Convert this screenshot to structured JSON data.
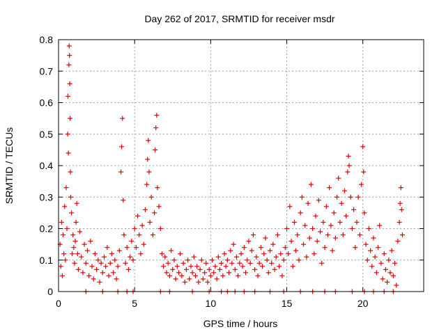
{
  "chart_data": {
    "type": "scatter",
    "title": "Day 262 of 2017, SRMTID for receiver msdr",
    "xlabel": "GPS time / hours",
    "ylabel": "SRMTID / TECUs",
    "xlim": [
      0,
      24
    ],
    "ylim": [
      0,
      0.8
    ],
    "xticks": [
      0,
      5,
      10,
      15,
      20
    ],
    "yticks": [
      0,
      0.1,
      0.2,
      0.3,
      0.4,
      0.5,
      0.6,
      0.7,
      0.8
    ],
    "xtick_labels": [
      "0",
      "5",
      "10",
      "15",
      "20"
    ],
    "ytick_labels": [
      "0",
      "0.1",
      "0.2",
      "0.3",
      "0.4",
      "0.5",
      "0.6",
      "0.7",
      "0.8"
    ],
    "marker": "+",
    "grid": true,
    "colors": {
      "series": "#e00000",
      "grid": "#a0a0a0",
      "axis": "#000000"
    },
    "series": [
      {
        "name": "SRMTID",
        "points": [
          [
            0.1,
            0.15
          ],
          [
            0.15,
            0.08
          ],
          [
            0.2,
            0.22
          ],
          [
            0.25,
            0.05
          ],
          [
            0.3,
            0.18
          ],
          [
            0.35,
            0.12
          ],
          [
            0.4,
            0.27
          ],
          [
            0.45,
            0.1
          ],
          [
            0.5,
            0.33
          ],
          [
            0.55,
            0.2
          ],
          [
            0.6,
            0.5
          ],
          [
            0.62,
            0.62
          ],
          [
            0.65,
            0.44
          ],
          [
            0.68,
            0.72
          ],
          [
            0.7,
            0.78
          ],
          [
            0.72,
            0.75
          ],
          [
            0.74,
            0.66
          ],
          [
            0.76,
            0.55
          ],
          [
            0.78,
            0.38
          ],
          [
            0.8,
            0.3
          ],
          [
            0.85,
            0.25
          ],
          [
            0.9,
            0.12
          ],
          [
            0.95,
            0.18
          ],
          [
            1.0,
            0.14
          ],
          [
            1.05,
            0.09
          ],
          [
            1.1,
            0.16
          ],
          [
            1.15,
            0.22
          ],
          [
            1.2,
            0.28
          ],
          [
            1.25,
            0.12
          ],
          [
            1.3,
            0.07
          ],
          [
            1.4,
            0.19
          ],
          [
            1.5,
            0.11
          ],
          [
            1.6,
            0.06
          ],
          [
            1.7,
            0.15
          ],
          [
            1.8,
            0.09
          ],
          [
            1.9,
            0.13
          ],
          [
            2.0,
            0.05
          ],
          [
            2.1,
            0.16
          ],
          [
            2.2,
            0.08
          ],
          [
            2.3,
            0.04
          ],
          [
            2.4,
            0.12
          ],
          [
            2.5,
            0.07
          ],
          [
            2.6,
            0.1
          ],
          [
            2.7,
            0.03
          ],
          [
            2.8,
            0.09
          ],
          [
            2.9,
            0.06
          ],
          [
            3.0,
            0.11
          ],
          [
            3.1,
            0.08
          ],
          [
            3.2,
            0.14
          ],
          [
            3.3,
            0.05
          ],
          [
            3.4,
            0.09
          ],
          [
            3.5,
            0.12
          ],
          [
            3.6,
            0.06
          ],
          [
            3.7,
            0.1
          ],
          [
            3.8,
            0.04
          ],
          [
            3.9,
            0.08
          ],
          [
            4.0,
            0.13
          ],
          [
            4.1,
            0.38
          ],
          [
            4.15,
            0.46
          ],
          [
            4.2,
            0.55
          ],
          [
            4.25,
            0.29
          ],
          [
            4.3,
            0.18
          ],
          [
            4.4,
            0.09
          ],
          [
            4.5,
            0.14
          ],
          [
            4.6,
            0.07
          ],
          [
            4.7,
            0.11
          ],
          [
            4.8,
            0.16
          ],
          [
            4.9,
            0.1
          ],
          [
            5.0,
            0.2
          ],
          [
            5.1,
            0.14
          ],
          [
            5.2,
            0.24
          ],
          [
            5.3,
            0.18
          ],
          [
            5.4,
            0.12
          ],
          [
            5.5,
            0.21
          ],
          [
            5.6,
            0.15
          ],
          [
            5.7,
            0.26
          ],
          [
            5.8,
            0.34
          ],
          [
            5.85,
            0.42
          ],
          [
            5.9,
            0.48
          ],
          [
            5.95,
            0.38
          ],
          [
            6.0,
            0.22
          ],
          [
            6.1,
            0.3
          ],
          [
            6.2,
            0.18
          ],
          [
            6.3,
            0.25
          ],
          [
            6.35,
            0.45
          ],
          [
            6.4,
            0.52
          ],
          [
            6.45,
            0.56
          ],
          [
            6.5,
            0.33
          ],
          [
            6.6,
            0.27
          ],
          [
            6.7,
            0.2
          ],
          [
            6.8,
            0.12
          ],
          [
            6.9,
            0.08
          ],
          [
            7.0,
            0.11
          ],
          [
            7.1,
            0.06
          ],
          [
            7.2,
            0.09
          ],
          [
            7.3,
            0.05
          ],
          [
            7.4,
            0.13
          ],
          [
            7.5,
            0.07
          ],
          [
            7.6,
            0.1
          ],
          [
            7.7,
            0.04
          ],
          [
            7.8,
            0.08
          ],
          [
            7.9,
            0.06
          ],
          [
            8.0,
            0.12
          ],
          [
            8.1,
            0.05
          ],
          [
            8.2,
            0.09
          ],
          [
            8.3,
            0.03
          ],
          [
            8.4,
            0.07
          ],
          [
            8.5,
            0.1
          ],
          [
            8.6,
            0.04
          ],
          [
            8.7,
            0.08
          ],
          [
            8.8,
            0.06
          ],
          [
            8.9,
            0.11
          ],
          [
            9.0,
            0.05
          ],
          [
            9.1,
            0.08
          ],
          [
            9.2,
            0.03
          ],
          [
            9.3,
            0.07
          ],
          [
            9.4,
            0.1
          ],
          [
            9.5,
            0.04
          ],
          [
            9.6,
            0.06
          ],
          [
            9.7,
            0.09
          ],
          [
            9.8,
            0.03
          ],
          [
            9.9,
            0.07
          ],
          [
            10.0,
            0.05
          ],
          [
            10.1,
            0.1
          ],
          [
            10.2,
            0.06
          ],
          [
            10.3,
            0.08
          ],
          [
            10.4,
            0.04
          ],
          [
            10.5,
            0.11
          ],
          [
            10.6,
            0.07
          ],
          [
            10.7,
            0.09
          ],
          [
            10.8,
            0.05
          ],
          [
            10.9,
            0.12
          ],
          [
            11.0,
            0.08
          ],
          [
            11.1,
            0.1
          ],
          [
            11.2,
            0.06
          ],
          [
            11.3,
            0.13
          ],
          [
            11.4,
            0.09
          ],
          [
            11.5,
            0.15
          ],
          [
            11.6,
            0.07
          ],
          [
            11.7,
            0.11
          ],
          [
            11.8,
            0.05
          ],
          [
            11.9,
            0.09
          ],
          [
            12.0,
            0.12
          ],
          [
            12.1,
            0.08
          ],
          [
            12.2,
            0.14
          ],
          [
            12.3,
            0.06
          ],
          [
            12.4,
            0.1
          ],
          [
            12.5,
            0.16
          ],
          [
            12.6,
            0.09
          ],
          [
            12.7,
            0.13
          ],
          [
            12.8,
            0.18
          ],
          [
            12.9,
            0.07
          ],
          [
            13.0,
            0.11
          ],
          [
            13.1,
            0.05
          ],
          [
            13.2,
            0.09
          ],
          [
            13.3,
            0.14
          ],
          [
            13.4,
            0.08
          ],
          [
            13.5,
            0.12
          ],
          [
            13.6,
            0.17
          ],
          [
            13.7,
            0.1
          ],
          [
            13.8,
            0.06
          ],
          [
            13.9,
            0.13
          ],
          [
            14.0,
            0.09
          ],
          [
            14.1,
            0.15
          ],
          [
            14.2,
            0.07
          ],
          [
            14.3,
            0.11
          ],
          [
            14.4,
            0.18
          ],
          [
            14.5,
            0.08
          ],
          [
            14.6,
            0.12
          ],
          [
            14.7,
            0.05
          ],
          [
            14.8,
            0.1
          ],
          [
            14.9,
            0.14
          ],
          [
            15.0,
            0.2
          ],
          [
            15.1,
            0.12
          ],
          [
            15.2,
            0.27
          ],
          [
            15.3,
            0.16
          ],
          [
            15.4,
            0.08
          ],
          [
            15.5,
            0.22
          ],
          [
            15.6,
            0.13
          ],
          [
            15.7,
            0.18
          ],
          [
            15.8,
            0.1
          ],
          [
            15.9,
            0.25
          ],
          [
            16.0,
            0.3
          ],
          [
            16.1,
            0.15
          ],
          [
            16.2,
            0.21
          ],
          [
            16.3,
            0.11
          ],
          [
            16.4,
            0.28
          ],
          [
            16.5,
            0.17
          ],
          [
            16.6,
            0.34
          ],
          [
            16.7,
            0.2
          ],
          [
            16.8,
            0.12
          ],
          [
            16.9,
            0.24
          ],
          [
            17.0,
            0.16
          ],
          [
            17.1,
            0.29
          ],
          [
            17.2,
            0.19
          ],
          [
            17.3,
            0.09
          ],
          [
            17.4,
            0.22
          ],
          [
            17.5,
            0.14
          ],
          [
            17.6,
            0.27
          ],
          [
            17.7,
            0.18
          ],
          [
            17.8,
            0.33
          ],
          [
            17.9,
            0.21
          ],
          [
            18.0,
            0.13
          ],
          [
            18.1,
            0.25
          ],
          [
            18.2,
            0.17
          ],
          [
            18.3,
            0.3
          ],
          [
            18.4,
            0.36
          ],
          [
            18.5,
            0.22
          ],
          [
            18.6,
            0.28
          ],
          [
            18.7,
            0.18
          ],
          [
            18.8,
            0.32
          ],
          [
            18.9,
            0.24
          ],
          [
            19.0,
            0.38
          ],
          [
            19.05,
            0.43
          ],
          [
            19.1,
            0.4
          ],
          [
            19.2,
            0.3
          ],
          [
            19.3,
            0.2
          ],
          [
            19.4,
            0.26
          ],
          [
            19.5,
            0.14
          ],
          [
            19.6,
            0.22
          ],
          [
            19.7,
            0.3
          ],
          [
            19.8,
            0.18
          ],
          [
            19.9,
            0.34
          ],
          [
            20.0,
            0.46
          ],
          [
            20.05,
            0.38
          ],
          [
            20.1,
            0.25
          ],
          [
            20.2,
            0.15
          ],
          [
            20.3,
            0.1
          ],
          [
            20.4,
            0.2
          ],
          [
            20.5,
            0.13
          ],
          [
            20.6,
            0.08
          ],
          [
            20.7,
            0.17
          ],
          [
            20.8,
            0.11
          ],
          [
            20.9,
            0.06
          ],
          [
            21.0,
            0.14
          ],
          [
            21.1,
            0.21
          ],
          [
            21.2,
            0.09
          ],
          [
            21.3,
            0.04
          ],
          [
            21.4,
            0.12
          ],
          [
            21.5,
            0.07
          ],
          [
            21.6,
            0.03
          ],
          [
            21.7,
            0.1
          ],
          [
            21.8,
            0.06
          ],
          [
            21.9,
            0.13
          ],
          [
            22.0,
            0.05
          ],
          [
            22.1,
            0.09
          ],
          [
            22.2,
            0.02
          ],
          [
            22.3,
            0.16
          ],
          [
            22.4,
            0.22
          ],
          [
            22.45,
            0.28
          ],
          [
            22.5,
            0.33
          ],
          [
            22.55,
            0.26
          ],
          [
            22.6,
            0.18
          ],
          [
            1.8,
            0.0
          ],
          [
            2.9,
            0.0
          ],
          [
            3.9,
            0.0
          ],
          [
            4.5,
            0.0
          ],
          [
            4.9,
            0.0
          ],
          [
            6.7,
            0.0
          ],
          [
            7.3,
            0.0
          ],
          [
            8.8,
            0.0
          ],
          [
            9.9,
            0.0
          ],
          [
            10.7,
            0.0
          ],
          [
            11.1,
            0.0
          ],
          [
            11.6,
            0.0
          ],
          [
            12.2,
            0.0
          ],
          [
            12.9,
            0.0
          ],
          [
            13.9,
            0.0
          ],
          [
            14.8,
            0.0
          ],
          [
            15.9,
            0.0
          ],
          [
            16.7,
            0.0
          ],
          [
            17.5,
            0.0
          ],
          [
            18.2,
            0.0
          ],
          [
            19.3,
            0.0
          ],
          [
            20.1,
            0.0
          ],
          [
            20.7,
            0.0
          ],
          [
            21.4,
            0.0
          ],
          [
            22.0,
            0.0
          ]
        ]
      }
    ]
  }
}
